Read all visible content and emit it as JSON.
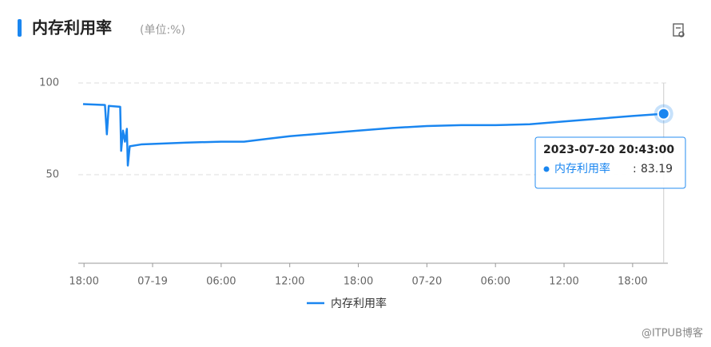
{
  "chart_data": {
    "type": "line",
    "title": "内存利用率",
    "subtitle": "(单位:%)",
    "x": [
      "2023-07-18 17:55:00",
      "2023-07-18 19:00:00",
      "2023-07-18 19:50:00",
      "2023-07-18 20:00:00",
      "2023-07-18 20:10:00",
      "2023-07-18 21:10:00",
      "2023-07-18 21:15:00",
      "2023-07-18 21:25:00",
      "2023-07-18 21:35:00",
      "2023-07-18 21:45:00",
      "2023-07-18 21:50:00",
      "2023-07-18 22:00:00",
      "2023-07-18 23:00:00",
      "2023-07-19 03:00:00",
      "2023-07-19 06:00:00",
      "2023-07-19 08:00:00",
      "2023-07-19 10:00:00",
      "2023-07-19 12:00:00",
      "2023-07-19 15:00:00",
      "2023-07-19 18:00:00",
      "2023-07-19 21:00:00",
      "2023-07-20 00:00:00",
      "2023-07-20 03:00:00",
      "2023-07-20 06:00:00",
      "2023-07-20 09:00:00",
      "2023-07-20 12:00:00",
      "2023-07-20 15:00:00",
      "2023-07-20 18:00:00",
      "2023-07-20 20:43:00"
    ],
    "series": [
      {
        "name": "内存利用率",
        "color": "#1a86f0",
        "values": [
          88.5,
          88.2,
          88,
          72,
          87.5,
          87,
          63,
          74,
          68,
          75,
          55,
          65.5,
          66.5,
          67.5,
          68,
          68,
          69.5,
          71,
          72.5,
          74,
          75.5,
          76.5,
          77,
          77,
          77.5,
          79,
          80.5,
          82,
          83.19
        ]
      }
    ],
    "xlim": [
      "2023-07-18 17:30:00",
      "2023-07-20 21:05:00"
    ],
    "xticks": [
      {
        "value": "2023-07-18 18:00:00",
        "label": "18:00"
      },
      {
        "value": "2023-07-19 00:00:00",
        "label": "07-19"
      },
      {
        "value": "2023-07-19 06:00:00",
        "label": "06:00"
      },
      {
        "value": "2023-07-19 12:00:00",
        "label": "12:00"
      },
      {
        "value": "2023-07-19 18:00:00",
        "label": "18:00"
      },
      {
        "value": "2023-07-20 00:00:00",
        "label": "07-20"
      },
      {
        "value": "2023-07-20 06:00:00",
        "label": "06:00"
      },
      {
        "value": "2023-07-20 12:00:00",
        "label": "12:00"
      },
      {
        "value": "2023-07-20 18:00:00",
        "label": "18:00"
      }
    ],
    "ylim": [
      0,
      100
    ],
    "yticks": [
      50,
      100
    ],
    "grid": true,
    "watermark": "@ITPUB博客"
  }
}
